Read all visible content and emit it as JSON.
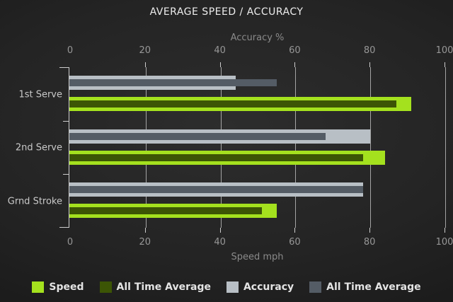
{
  "title": "AVERAGE SPEED / ACCURACY",
  "chart_data": {
    "type": "bar",
    "orientation": "horizontal",
    "categories": [
      "1st Serve",
      "2nd Serve",
      "Grnd Stroke"
    ],
    "series": [
      {
        "name": "Speed",
        "axis": "bottom",
        "role": "outer",
        "color": "#a4e11e",
        "values": [
          91,
          84,
          55
        ]
      },
      {
        "name": "All Time Average",
        "axis": "bottom",
        "role": "inner",
        "color": "#3c5505",
        "values": [
          87,
          78,
          51
        ]
      },
      {
        "name": "Accuracy",
        "axis": "top",
        "role": "outer",
        "color": "#b8bfc5",
        "values": [
          44,
          80,
          78
        ]
      },
      {
        "name": "All Time Average",
        "axis": "top",
        "role": "inner",
        "color": "#545c65",
        "values": [
          55,
          68,
          78
        ]
      }
    ],
    "top_axis": {
      "label": "Accuracy %",
      "ticks": [
        "0",
        "20",
        "40",
        "60",
        "80",
        "100"
      ],
      "range": [
        0,
        100
      ]
    },
    "bottom_axis": {
      "label": "Speed mph",
      "ticks": [
        "0",
        "20",
        "40",
        "60",
        "80",
        "100"
      ],
      "range": [
        0,
        100
      ]
    },
    "legend": [
      {
        "label": "Speed",
        "color": "#a4e11e"
      },
      {
        "label": "All Time Average",
        "color": "#3c5505"
      },
      {
        "label": "Accuracy",
        "color": "#b8bfc5"
      },
      {
        "label": "All Time Average",
        "color": "#545c65"
      }
    ],
    "grid": true,
    "legend_position": "bottom",
    "colors": {
      "background": "#242424",
      "axis_line": "#cdcdcd",
      "gridline": "#c8c8c8",
      "tick_text": "#979797",
      "axis_title_text": "#8a8a8a",
      "category_text": "#c9c9c9",
      "title_text": "#ededed",
      "legend_text": "#e4e4e4"
    }
  }
}
